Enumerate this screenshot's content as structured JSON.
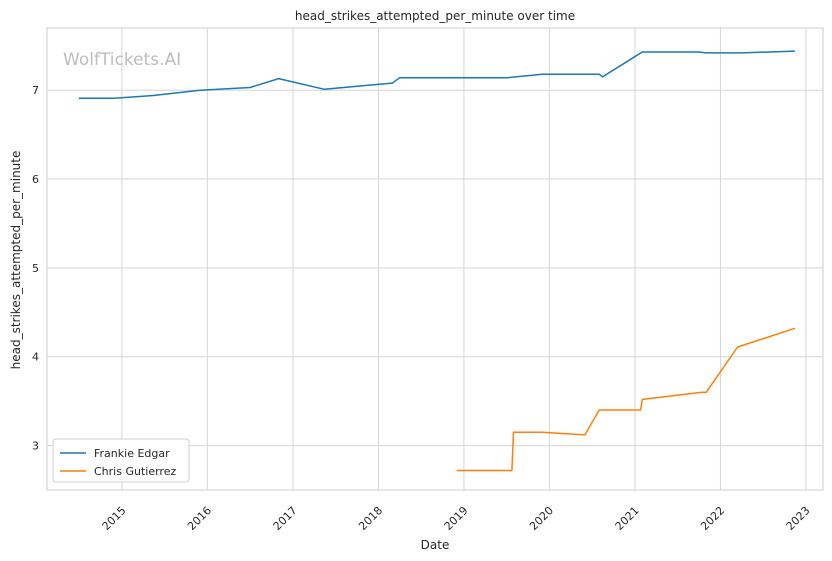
{
  "chart_data": {
    "type": "line",
    "title": "head_strikes_attempted_per_minute over time",
    "xlabel": "Date",
    "ylabel": "head_strikes_attempted_per_minute",
    "watermark": "WolfTickets.AI",
    "x_ticks": [
      "2015",
      "2016",
      "2017",
      "2018",
      "2019",
      "2020",
      "2021",
      "2022",
      "2023"
    ],
    "y_ticks": [
      3,
      4,
      5,
      6,
      7
    ],
    "xlim": [
      "2014-02-15",
      "2023-03-15"
    ],
    "ylim": [
      2.5,
      7.7
    ],
    "grid": true,
    "legend_position": "lower-left",
    "colors": {
      "Frankie Edgar": "#1f77b4",
      "Chris Gutierrez": "#ff7f0e"
    },
    "series": [
      {
        "name": "Frankie Edgar",
        "points": [
          [
            "2014-07-01",
            6.91
          ],
          [
            "2014-12-01",
            6.91
          ],
          [
            "2015-05-15",
            6.94
          ],
          [
            "2015-12-01",
            7.0
          ],
          [
            "2016-07-01",
            7.03
          ],
          [
            "2016-11-01",
            7.13
          ],
          [
            "2017-05-15",
            7.01
          ],
          [
            "2018-03-01",
            7.08
          ],
          [
            "2018-04-01",
            7.14
          ],
          [
            "2019-07-01",
            7.14
          ],
          [
            "2019-12-01",
            7.18
          ],
          [
            "2020-08-01",
            7.18
          ],
          [
            "2020-08-15",
            7.15
          ],
          [
            "2021-02-01",
            7.43
          ],
          [
            "2021-10-01",
            7.43
          ],
          [
            "2021-11-01",
            7.42
          ],
          [
            "2022-04-01",
            7.42
          ],
          [
            "2022-11-15",
            7.44
          ]
        ]
      },
      {
        "name": "Chris Gutierrez",
        "points": [
          [
            "2018-12-01",
            2.72
          ],
          [
            "2019-07-25",
            2.72
          ],
          [
            "2019-08-01",
            3.15
          ],
          [
            "2019-12-01",
            3.15
          ],
          [
            "2020-06-01",
            3.12
          ],
          [
            "2020-08-01",
            3.4
          ],
          [
            "2021-01-25",
            3.4
          ],
          [
            "2021-02-01",
            3.52
          ],
          [
            "2021-10-15",
            3.6
          ],
          [
            "2021-11-01",
            3.6
          ],
          [
            "2022-03-15",
            4.11
          ],
          [
            "2022-11-15",
            4.32
          ]
        ]
      }
    ]
  }
}
